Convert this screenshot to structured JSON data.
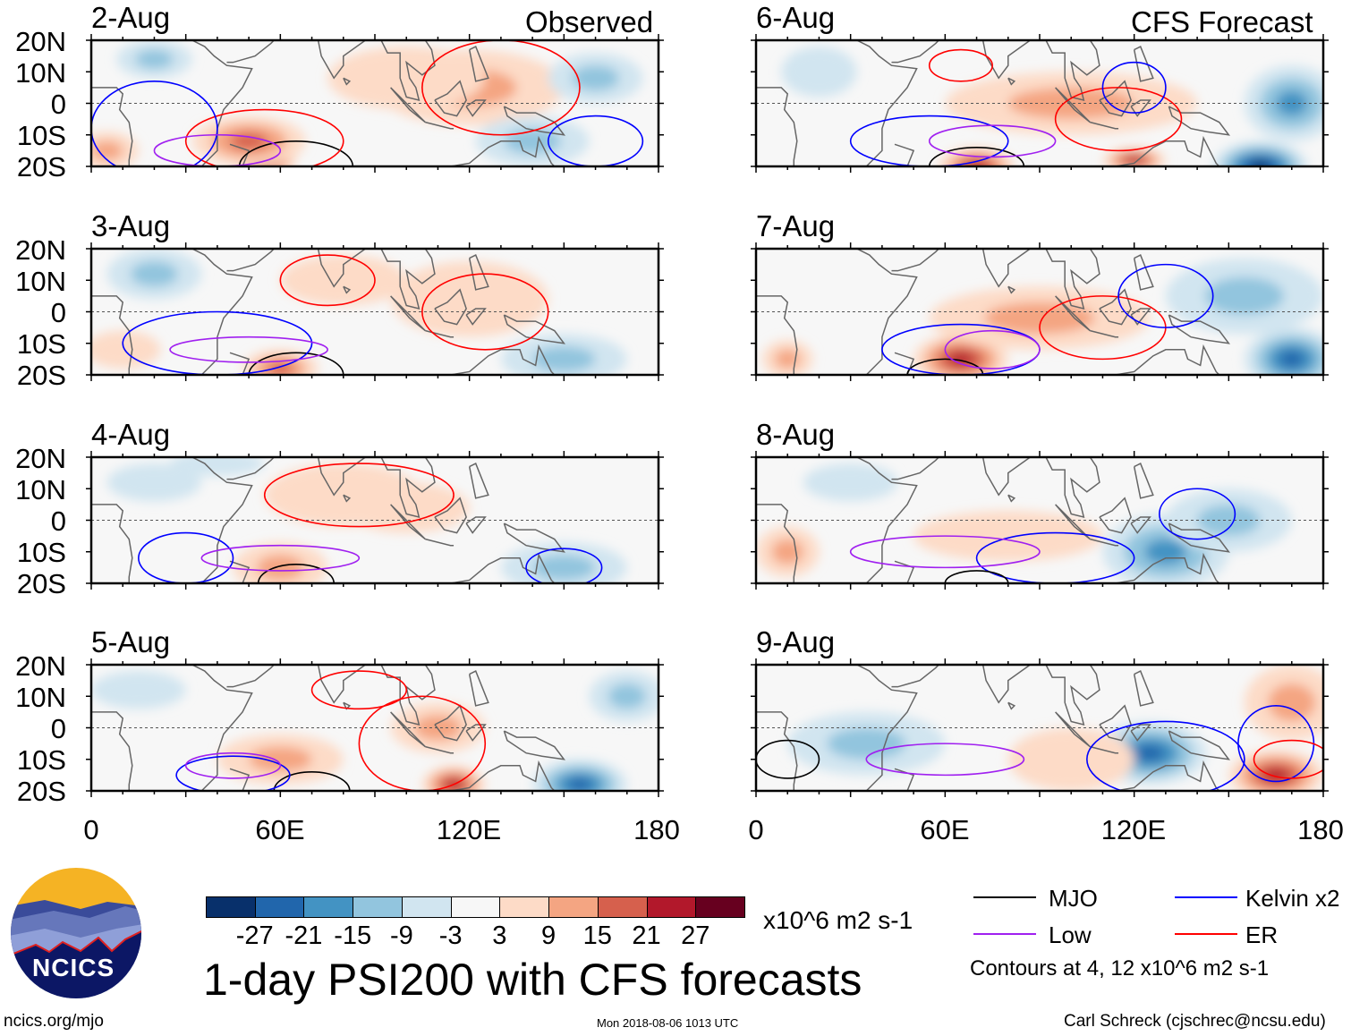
{
  "title": "1-day PSI200 with CFS forecasts",
  "units": "x10^6 m2 s-1",
  "observed_label": "Observed",
  "forecast_label": "CFS Forecast",
  "lat_labels": [
    "20N",
    "10N",
    "0",
    "10S",
    "20S"
  ],
  "lon_labels": [
    "0",
    "60E",
    "120E",
    "180"
  ],
  "colorbar": {
    "labels": [
      "-27",
      "-21",
      "-15",
      "-9",
      "-3",
      "3",
      "9",
      "15",
      "21",
      "27"
    ],
    "colors": [
      "#08306b",
      "#2166ac",
      "#4393c3",
      "#92c5de",
      "#d1e5f0",
      "#f7f7f7",
      "#fddbc7",
      "#f4a582",
      "#d6604d",
      "#b2182b",
      "#67001f"
    ]
  },
  "legend": {
    "items": [
      {
        "label": "MJO",
        "color": "#000000"
      },
      {
        "label": "Kelvin x2",
        "color": "#0000ff"
      },
      {
        "label": "Low",
        "color": "#a020f0"
      },
      {
        "label": "ER",
        "color": "#ff0000"
      }
    ],
    "note": "Contours at 4, 12 x10^6 m2 s-1"
  },
  "logo_text": "NCICS",
  "footer": {
    "url": "ncics.org/mjo",
    "timestamp": "Mon 2018-08-06 1013 UTC",
    "credit": "Carl Schreck (cjschrec@ncsu.edu)"
  },
  "panels": [
    {
      "date": "2-Aug",
      "anom": [
        [
          55,
          -18,
          30,
          10,
          5
        ],
        [
          50,
          -12,
          15,
          18,
          8
        ],
        [
          120,
          5,
          9,
          30,
          12
        ],
        [
          100,
          8,
          4,
          25,
          10
        ],
        [
          20,
          14,
          -9,
          12,
          6
        ],
        [
          160,
          8,
          -9,
          15,
          8
        ],
        [
          140,
          -12,
          -9,
          18,
          8
        ],
        [
          5,
          -15,
          9,
          10,
          6
        ]
      ],
      "contours": [
        [
          "MJO",
          65,
          -20,
          18,
          8
        ],
        [
          "ER",
          55,
          -12,
          25,
          10
        ],
        [
          "ER",
          130,
          5,
          25,
          15
        ],
        [
          "Kelvin",
          20,
          -8,
          20,
          15
        ],
        [
          "Kelvin",
          160,
          -12,
          15,
          8
        ],
        [
          "Low",
          40,
          -15,
          20,
          5
        ]
      ]
    },
    {
      "date": "3-Aug",
      "anom": [
        [
          60,
          -18,
          15,
          12,
          6
        ],
        [
          80,
          10,
          6,
          20,
          8
        ],
        [
          120,
          4,
          6,
          25,
          12
        ],
        [
          20,
          12,
          -9,
          15,
          8
        ],
        [
          150,
          -15,
          -12,
          20,
          8
        ],
        [
          10,
          -12,
          6,
          12,
          6
        ]
      ],
      "contours": [
        [
          "MJO",
          65,
          -20,
          15,
          7
        ],
        [
          "ER",
          75,
          10,
          15,
          8
        ],
        [
          "ER",
          125,
          0,
          20,
          12
        ],
        [
          "Kelvin",
          40,
          -10,
          30,
          10
        ],
        [
          "Low",
          50,
          -12,
          25,
          4
        ]
      ]
    },
    {
      "date": "4-Aug",
      "anom": [
        [
          60,
          -15,
          12,
          15,
          8
        ],
        [
          80,
          8,
          6,
          25,
          10
        ],
        [
          100,
          4,
          6,
          20,
          8
        ],
        [
          20,
          12,
          -6,
          15,
          6
        ],
        [
          150,
          -15,
          -9,
          20,
          8
        ],
        [
          40,
          18,
          -6,
          15,
          4
        ]
      ],
      "contours": [
        [
          "MJO",
          65,
          -20,
          12,
          6
        ],
        [
          "ER",
          85,
          8,
          30,
          10
        ],
        [
          "Kelvin",
          30,
          -12,
          15,
          8
        ],
        [
          "Kelvin",
          150,
          -15,
          12,
          6
        ],
        [
          "Low",
          60,
          -12,
          25,
          4
        ]
      ]
    },
    {
      "date": "5-Aug",
      "anom": [
        [
          115,
          -18,
          24,
          10,
          6
        ],
        [
          110,
          0,
          9,
          15,
          8
        ],
        [
          60,
          -10,
          9,
          20,
          8
        ],
        [
          155,
          -18,
          -24,
          15,
          8
        ],
        [
          170,
          10,
          -9,
          12,
          8
        ],
        [
          15,
          12,
          -6,
          15,
          6
        ]
      ],
      "contours": [
        [
          "MJO",
          70,
          -20,
          12,
          6
        ],
        [
          "ER",
          105,
          -5,
          20,
          15
        ],
        [
          "ER",
          85,
          12,
          15,
          6
        ],
        [
          "Kelvin",
          45,
          -15,
          18,
          6
        ],
        [
          "Low",
          45,
          -12,
          15,
          4
        ]
      ]
    },
    {
      "date": "6-Aug",
      "anom": [
        [
          70,
          -20,
          21,
          12,
          6
        ],
        [
          100,
          0,
          12,
          40,
          10
        ],
        [
          120,
          -18,
          24,
          10,
          4
        ],
        [
          160,
          -20,
          -27,
          15,
          8
        ],
        [
          170,
          0,
          -15,
          15,
          12
        ],
        [
          20,
          10,
          -6,
          12,
          8
        ]
      ],
      "contours": [
        [
          "MJO",
          70,
          -20,
          15,
          6
        ],
        [
          "ER",
          65,
          12,
          10,
          5
        ],
        [
          "ER",
          115,
          -5,
          20,
          10
        ],
        [
          "Kelvin",
          120,
          5,
          10,
          8
        ],
        [
          "Kelvin",
          55,
          -12,
          25,
          8
        ],
        [
          "Low",
          75,
          -12,
          20,
          5
        ]
      ]
    },
    {
      "date": "7-Aug",
      "anom": [
        [
          65,
          -15,
          21,
          15,
          8
        ],
        [
          90,
          -2,
          9,
          35,
          10
        ],
        [
          170,
          -15,
          -21,
          15,
          10
        ],
        [
          155,
          5,
          -9,
          25,
          12
        ],
        [
          10,
          -15,
          12,
          8,
          6
        ]
      ],
      "contours": [
        [
          "MJO",
          60,
          -20,
          12,
          5
        ],
        [
          "ER",
          110,
          -5,
          20,
          10
        ],
        [
          "Kelvin",
          130,
          5,
          15,
          10
        ],
        [
          "Kelvin",
          65,
          -12,
          25,
          8
        ],
        [
          "Low",
          75,
          -12,
          15,
          6
        ]
      ]
    },
    {
      "date": "8-Aug",
      "anom": [
        [
          130,
          -10,
          -15,
          20,
          12
        ],
        [
          150,
          0,
          -9,
          20,
          10
        ],
        [
          10,
          -10,
          9,
          10,
          8
        ],
        [
          80,
          -5,
          6,
          30,
          8
        ],
        [
          30,
          12,
          -6,
          15,
          6
        ]
      ],
      "contours": [
        [
          "Kelvin",
          140,
          2,
          12,
          8
        ],
        [
          "Kelvin",
          95,
          -12,
          25,
          8
        ],
        [
          "Low",
          60,
          -10,
          30,
          5
        ],
        [
          "MJO",
          70,
          -20,
          10,
          4
        ]
      ]
    },
    {
      "date": "9-Aug",
      "anom": [
        [
          125,
          -8,
          -21,
          18,
          10
        ],
        [
          165,
          -15,
          21,
          15,
          8
        ],
        [
          170,
          8,
          12,
          15,
          12
        ],
        [
          35,
          -5,
          -9,
          25,
          10
        ],
        [
          100,
          -10,
          6,
          20,
          10
        ]
      ],
      "contours": [
        [
          "Kelvin",
          130,
          -10,
          25,
          12
        ],
        [
          "Kelvin",
          165,
          -5,
          12,
          12
        ],
        [
          "ER",
          170,
          -10,
          12,
          6
        ],
        [
          "Low",
          60,
          -10,
          25,
          5
        ],
        [
          "MJO",
          10,
          -10,
          10,
          6
        ]
      ]
    }
  ]
}
